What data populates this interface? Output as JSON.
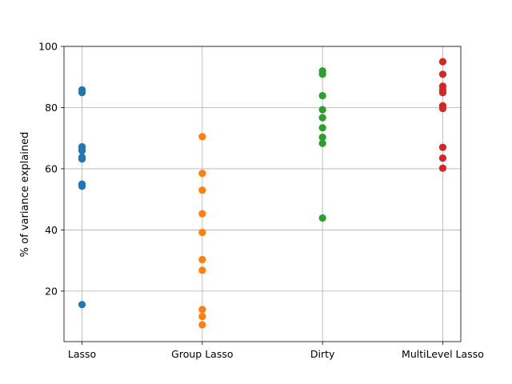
{
  "chart_data": {
    "type": "scatter",
    "title": "",
    "xlabel": "",
    "ylabel": "% of variance explained",
    "categories": [
      "Lasso",
      "Group Lasso",
      "Dirty",
      "MultiLevel Lasso"
    ],
    "ylim": [
      3.5,
      100
    ],
    "yticks": [
      20,
      40,
      60,
      80,
      100
    ],
    "grid": true,
    "legend": "none",
    "series": [
      {
        "category": "Lasso",
        "color": "#1f77b4",
        "values": [
          85.8,
          84.9,
          67.2,
          66.4,
          65.9,
          63.8,
          63.2,
          55.0,
          54.3,
          15.6
        ]
      },
      {
        "category": "Group Lasso",
        "color": "#ff7f0e",
        "values": [
          70.5,
          58.5,
          53.0,
          45.3,
          39.2,
          30.3,
          26.8,
          14.0,
          11.7,
          9.0
        ]
      },
      {
        "category": "Dirty",
        "color": "#2ca02c",
        "values": [
          92.0,
          90.9,
          83.9,
          79.3,
          76.7,
          73.4,
          70.3,
          68.3,
          43.9
        ]
      },
      {
        "category": "MultiLevel Lasso",
        "color": "#d62728",
        "values": [
          95.0,
          90.9,
          87.0,
          85.8,
          84.9,
          80.6,
          79.7,
          67.0,
          63.5,
          60.2
        ]
      }
    ]
  }
}
